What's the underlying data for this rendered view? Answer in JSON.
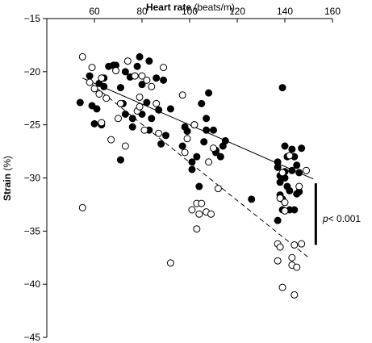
{
  "chart_data": {
    "type": "scatter",
    "title": "",
    "xlabel_bold": "Heart rate",
    "xlabel_unit": " (beats/m)",
    "ylabel_bold": "Strain",
    "ylabel_unit": " (%)",
    "xaxis_position": "top",
    "xlim": [
      40,
      160
    ],
    "ylim": [
      -45,
      -15
    ],
    "xticks": [
      60,
      80,
      100,
      120,
      140,
      160
    ],
    "yticks": [
      -15,
      -20,
      -25,
      -30,
      -35,
      -40,
      -45
    ],
    "grid": false,
    "series": [
      {
        "marker": "filled-circle",
        "color": "#000000",
        "trendline": "solid",
        "fit": {
          "x": [
            55,
            152
          ],
          "y": [
            -20.6,
            -30.1
          ]
        },
        "points": [
          [
            58,
            -20.4
          ],
          [
            59,
            -23.2
          ],
          [
            60,
            -24.9
          ],
          [
            61,
            -23.5
          ],
          [
            62,
            -21.1
          ],
          [
            63,
            -25.0
          ],
          [
            64,
            -21.4
          ],
          [
            66,
            -19.5
          ],
          [
            68,
            -19.4
          ],
          [
            69,
            -19.4
          ],
          [
            71,
            -21.5
          ],
          [
            72,
            -23.0
          ],
          [
            73,
            -24.0
          ],
          [
            73,
            -20.0
          ],
          [
            75,
            -20.5
          ],
          [
            76,
            -24.4
          ],
          [
            76,
            -25.2
          ],
          [
            77,
            -20.4
          ],
          [
            78,
            -19.5
          ],
          [
            79,
            -18.6
          ],
          [
            80,
            -21.2
          ],
          [
            80,
            -24.0
          ],
          [
            82,
            -22.9
          ],
          [
            83,
            -19.0
          ],
          [
            83,
            -25.5
          ],
          [
            84,
            -24.4
          ],
          [
            86,
            -20.6
          ],
          [
            87,
            -23.6
          ],
          [
            89,
            -20.8
          ],
          [
            90,
            -26.0
          ],
          [
            92,
            -23.5
          ],
          [
            88,
            -26.8
          ],
          [
            97,
            -27.0
          ],
          [
            98,
            -25.2
          ],
          [
            99,
            -25.6
          ],
          [
            101,
            -28.5
          ],
          [
            101,
            -29.2
          ],
          [
            102,
            -25.0
          ],
          [
            103,
            -28.0
          ],
          [
            104,
            -30.8
          ],
          [
            105,
            -23.0
          ],
          [
            106,
            -26.6
          ],
          [
            107,
            -24.4
          ],
          [
            107,
            -25.5
          ],
          [
            108,
            -22.0
          ],
          [
            110,
            -25.5
          ],
          [
            111,
            -27.4
          ],
          [
            111,
            -27.6
          ],
          [
            113,
            -28.0
          ],
          [
            114,
            -27.0
          ],
          [
            115,
            -26.5
          ],
          [
            126,
            -32.0
          ],
          [
            137,
            -28.5
          ],
          [
            137,
            -29.0
          ],
          [
            137,
            -34.0
          ],
          [
            138,
            -29.8
          ],
          [
            138,
            -30.4
          ],
          [
            138,
            -31.6
          ],
          [
            139,
            -21.5
          ],
          [
            139,
            -32.0
          ],
          [
            139,
            -33.0
          ],
          [
            140,
            -27.0
          ],
          [
            140,
            -29.4
          ],
          [
            140,
            -30.0
          ],
          [
            141,
            -28.0
          ],
          [
            141,
            -30.8
          ],
          [
            142,
            -31.2
          ],
          [
            142,
            -33.0
          ],
          [
            143,
            -29.3
          ],
          [
            143,
            -27.3
          ],
          [
            144,
            -28.0
          ],
          [
            144,
            -33.0
          ],
          [
            145,
            -31.5
          ],
          [
            145,
            -28.8
          ],
          [
            146,
            -31.3
          ],
          [
            146,
            -29.5
          ],
          [
            147,
            -27.2
          ],
          [
            54,
            -22.9
          ],
          [
            71,
            -28.3
          ],
          [
            64,
            -20.6
          ]
        ]
      },
      {
        "marker": "open-circle",
        "color": "#000000",
        "trendline": "dashed",
        "fit": {
          "x": [
            58,
            150
          ],
          "y": [
            -21.0,
            -37.5
          ]
        },
        "points": [
          [
            55,
            -18.6
          ],
          [
            55,
            -32.8
          ],
          [
            58,
            -21.0
          ],
          [
            59,
            -19.6
          ],
          [
            60,
            -21.6
          ],
          [
            62,
            -22.1
          ],
          [
            63,
            -20.6
          ],
          [
            63,
            -24.8
          ],
          [
            65,
            -22.5
          ],
          [
            67,
            -26.4
          ],
          [
            69,
            -19.9
          ],
          [
            70,
            -24.4
          ],
          [
            71,
            -23.0
          ],
          [
            73,
            -27.0
          ],
          [
            74,
            -19.0
          ],
          [
            77,
            -20.4
          ],
          [
            78,
            -23.7
          ],
          [
            79,
            -22.4
          ],
          [
            79,
            -23.3
          ],
          [
            80,
            -20.4
          ],
          [
            81,
            -25.5
          ],
          [
            82,
            -20.8
          ],
          [
            84,
            -21.4
          ],
          [
            86,
            -23.0
          ],
          [
            87,
            -25.8
          ],
          [
            89,
            -19.6
          ],
          [
            92,
            -38.0
          ],
          [
            97,
            -22.2
          ],
          [
            98,
            -27.6
          ],
          [
            99,
            -26.3
          ],
          [
            101,
            -33.0
          ],
          [
            102,
            -25.0
          ],
          [
            103,
            -32.4
          ],
          [
            103,
            -34.8
          ],
          [
            104,
            -33.4
          ],
          [
            105,
            -32.4
          ],
          [
            107,
            -33.2
          ],
          [
            108,
            -28.5
          ],
          [
            109,
            -33.4
          ],
          [
            110,
            -27.2
          ],
          [
            112,
            -31.0
          ],
          [
            137,
            -36.2
          ],
          [
            137,
            -37.8
          ],
          [
            138,
            -31.9
          ],
          [
            138,
            -36.5
          ],
          [
            139,
            -40.3
          ],
          [
            139,
            -29.5
          ],
          [
            140,
            -33.1
          ],
          [
            142,
            -27.9
          ],
          [
            143,
            -37.5
          ],
          [
            143,
            -38.2
          ],
          [
            144,
            -41.0
          ],
          [
            144,
            -36.3
          ],
          [
            145,
            -38.4
          ],
          [
            147,
            -36.2
          ],
          [
            149,
            -29.3
          ],
          [
            140,
            -32.3
          ],
          [
            146,
            -30.8
          ]
        ]
      }
    ],
    "bracket": {
      "x": 153,
      "y": [
        -30.5,
        -36.3
      ],
      "label_italic": "p",
      "label_rest": "< 0.001"
    }
  }
}
